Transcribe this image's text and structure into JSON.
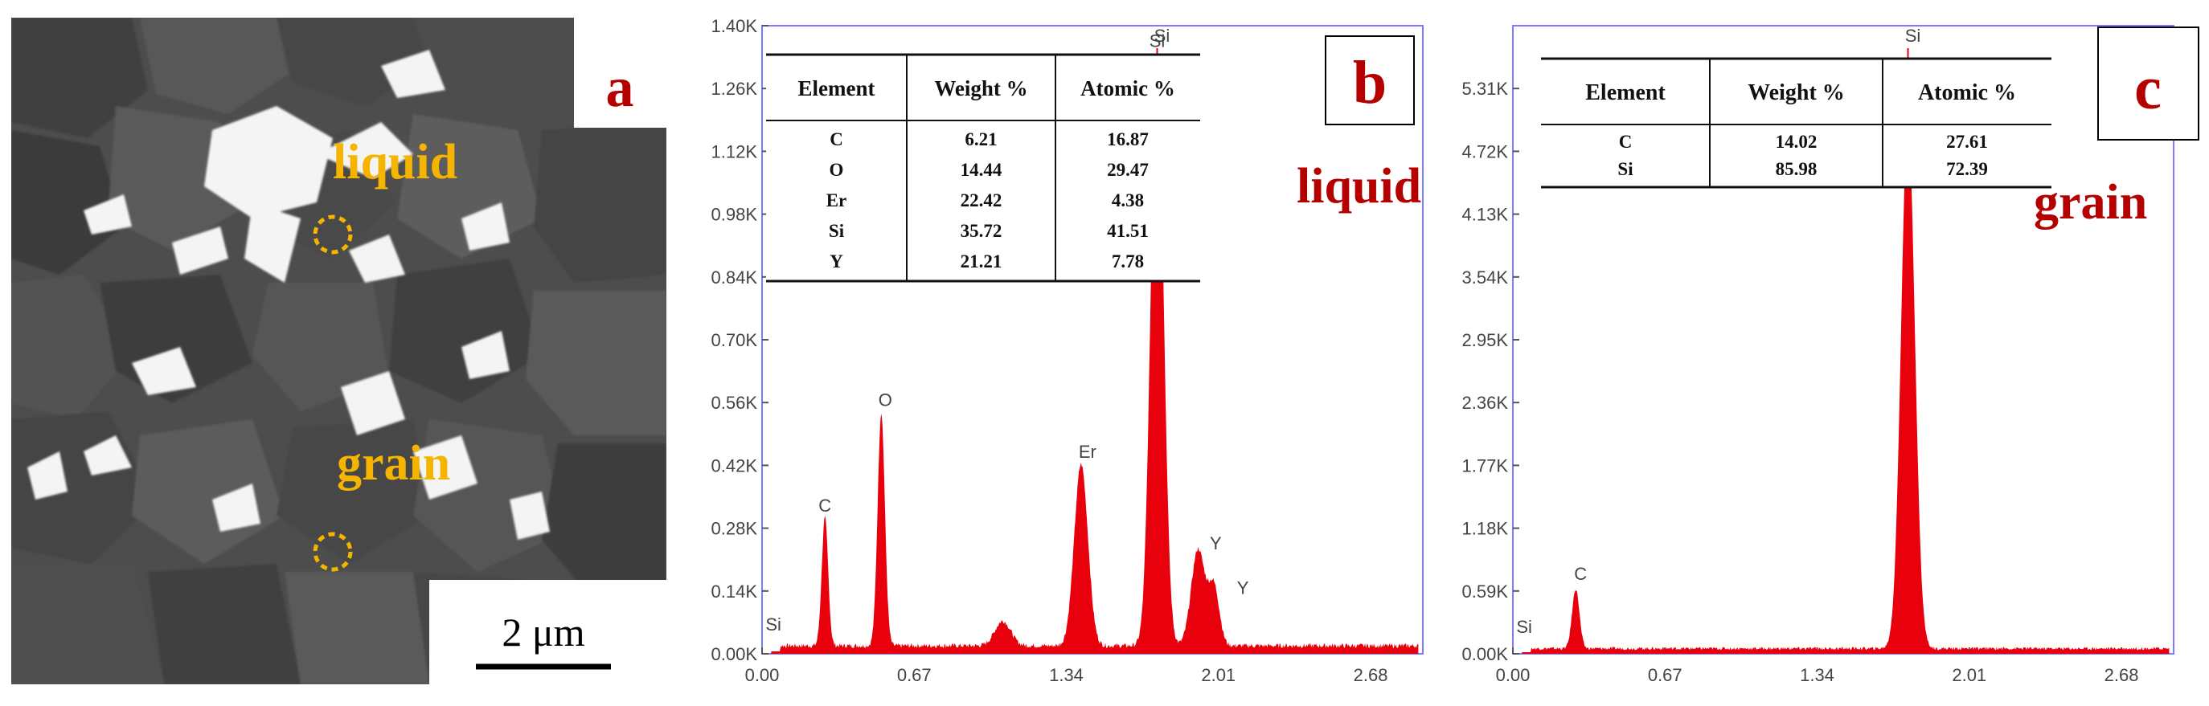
{
  "panel_a": {
    "panel_letter": "a",
    "label_liquid": "liquid",
    "label_grain": "grain",
    "scale_bar_label": "2 μm"
  },
  "colors": {
    "spectrum_fill": "#e8000d",
    "frame_border": "#7b7bff",
    "panel_label_text": "#b50000",
    "micrograph_annotation": "#f5b400"
  },
  "chart_data": [
    {
      "type": "area",
      "panel_letter": "b",
      "side_label": "liquid",
      "xlim": [
        0,
        2.91
      ],
      "ylim": [
        0,
        1400
      ],
      "x_ticks": [
        0.0,
        0.67,
        1.34,
        2.01,
        2.68
      ],
      "x_tick_labels": [
        "0.00",
        "0.67",
        "1.34",
        "2.01",
        "2.68"
      ],
      "y_ticks": [
        0,
        140,
        280,
        420,
        560,
        700,
        840,
        980,
        1120,
        1260,
        1400
      ],
      "y_tick_labels": [
        "0.00K",
        "0.14K",
        "0.28K",
        "0.42K",
        "0.56K",
        "0.70K",
        "0.84K",
        "0.98K",
        "1.12K",
        "1.26K",
        "1.40K"
      ],
      "background_level": 18,
      "peaks": [
        {
          "label": "C",
          "x": 0.277,
          "y": 285
        },
        {
          "label": "O",
          "x": 0.525,
          "y": 520
        },
        {
          "label": "",
          "x": 1.06,
          "y": 55
        },
        {
          "label": "Er",
          "x": 1.405,
          "y": 405
        },
        {
          "label": "Si",
          "x": 1.74,
          "y": 1320
        },
        {
          "label": "Y",
          "x": 1.92,
          "y": 215
        },
        {
          "label": "Y",
          "x": 1.99,
          "y": 130
        }
      ],
      "extra_labels": [
        {
          "label": "Si",
          "x": 0.05,
          "y": 20
        }
      ],
      "table": {
        "headers": [
          "Element",
          "Weight %",
          "Atomic %"
        ],
        "rows": [
          [
            "C",
            "6.21",
            "16.87"
          ],
          [
            "O",
            "14.44",
            "29.47"
          ],
          [
            "Er",
            "22.42",
            "4.38"
          ],
          [
            "Si",
            "35.72",
            "41.51"
          ],
          [
            "Y",
            "21.21",
            "7.78"
          ]
        ]
      }
    },
    {
      "type": "area",
      "panel_letter": "c",
      "side_label": "grain",
      "xlim": [
        0,
        2.91
      ],
      "ylim": [
        0,
        5900
      ],
      "x_ticks": [
        0.0,
        0.67,
        1.34,
        2.01,
        2.68
      ],
      "x_tick_labels": [
        "0.00",
        "0.67",
        "1.34",
        "2.01",
        "2.68"
      ],
      "y_ticks": [
        0,
        590,
        1180,
        1770,
        2360,
        2950,
        3540,
        4130,
        4720,
        5310
      ],
      "y_tick_labels": [
        "0.00K",
        "0.59K",
        "1.18K",
        "1.77K",
        "2.36K",
        "2.95K",
        "3.54K",
        "4.13K",
        "4.72K",
        "5.31K"
      ],
      "background_level": 50,
      "peaks": [
        {
          "label": "C",
          "x": 0.277,
          "y": 560
        },
        {
          "label": "Si",
          "x": 1.74,
          "y": 5000
        }
      ],
      "extra_labels": [
        {
          "label": "Si",
          "x": 0.05,
          "y": 60
        }
      ],
      "table": {
        "headers": [
          "Element",
          "Weight %",
          "Atomic %"
        ],
        "rows": [
          [
            "C",
            "14.02",
            "27.61"
          ],
          [
            "Si",
            "85.98",
            "72.39"
          ]
        ]
      }
    }
  ]
}
